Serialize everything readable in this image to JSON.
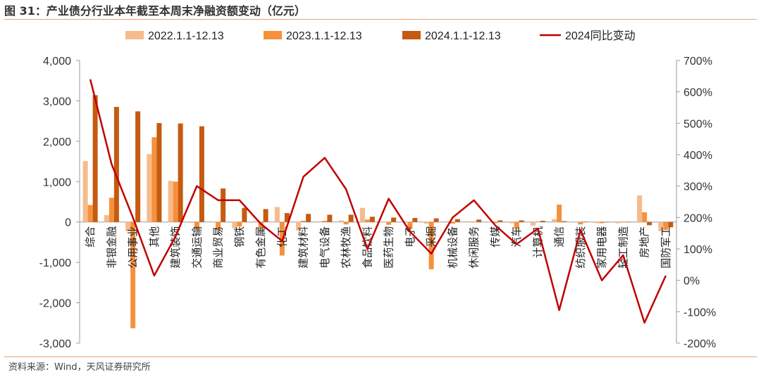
{
  "header": {
    "title": "图 31：产业债分行业本年截至本周末净融资额变动（亿元）"
  },
  "footer": {
    "source": "资料来源：Wind，天风证券研究所"
  },
  "chart_data": {
    "type": "bar",
    "title": "",
    "xlabel": "",
    "ylabel": "",
    "ylim": [
      -3000,
      4000
    ],
    "y2lim": [
      -200,
      700
    ],
    "yticks": [
      "4,000",
      "3,000",
      "2,000",
      "1,000",
      "0",
      "-1,000",
      "-2,000",
      "-3,000"
    ],
    "y2ticks": [
      "700%",
      "600%",
      "500%",
      "400%",
      "300%",
      "200%",
      "100%",
      "0%",
      "-100%",
      "-200%"
    ],
    "grid": false,
    "legend_position": "top",
    "categories": [
      "综合",
      "非银金融",
      "公用事业",
      "其他",
      "建筑装饰",
      "交通运输",
      "商业贸易",
      "钢铁",
      "有色金属",
      "化工",
      "建筑材料",
      "电气设备",
      "农林牧渔",
      "食品饮料",
      "医药生物",
      "电子",
      "采掘",
      "机械设备",
      "休闲服务",
      "传媒",
      "汽车",
      "计算机",
      "通信",
      "纺织服装",
      "家用电器",
      "轻工制造",
      "房地产",
      "国防军工"
    ],
    "series": [
      {
        "name": "2022.1.1-12.13",
        "type": "bar",
        "axis": "left",
        "color": "#f6bb8b",
        "values": [
          1510,
          170,
          -230,
          1680,
          1020,
          -20,
          10,
          -160,
          20,
          370,
          -210,
          20,
          40,
          350,
          10,
          10,
          -40,
          20,
          20,
          10,
          -30,
          -90,
          70,
          10,
          -30,
          -30,
          660,
          -230
        ]
      },
      {
        "name": "2023.1.1-12.13",
        "type": "bar",
        "axis": "left",
        "color": "#f5913c",
        "values": [
          420,
          600,
          -2630,
          2100,
          1000,
          -180,
          -200,
          -110,
          -150,
          -830,
          30,
          30,
          -60,
          60,
          -70,
          -170,
          -1170,
          -40,
          10,
          -30,
          -170,
          10,
          430,
          -60,
          -30,
          10,
          240,
          -200
        ]
      },
      {
        "name": "2024.1.1-12.13",
        "type": "bar",
        "axis": "left",
        "color": "#c55a11",
        "values": [
          3140,
          2850,
          2740,
          2450,
          2440,
          2370,
          830,
          350,
          320,
          220,
          200,
          180,
          180,
          130,
          110,
          100,
          90,
          70,
          60,
          40,
          40,
          30,
          20,
          10,
          0,
          0,
          -80,
          -130
        ]
      },
      {
        "name": "2024同比变动",
        "type": "line",
        "axis": "right",
        "color": "#c00000",
        "values": [
          640,
          370,
          200,
          15,
          140,
          300,
          255,
          255,
          180,
          125,
          330,
          390,
          290,
          100,
          260,
          155,
          85,
          200,
          255,
          175,
          115,
          165,
          -95,
          160,
          0,
          80,
          -135,
          15
        ]
      }
    ]
  }
}
